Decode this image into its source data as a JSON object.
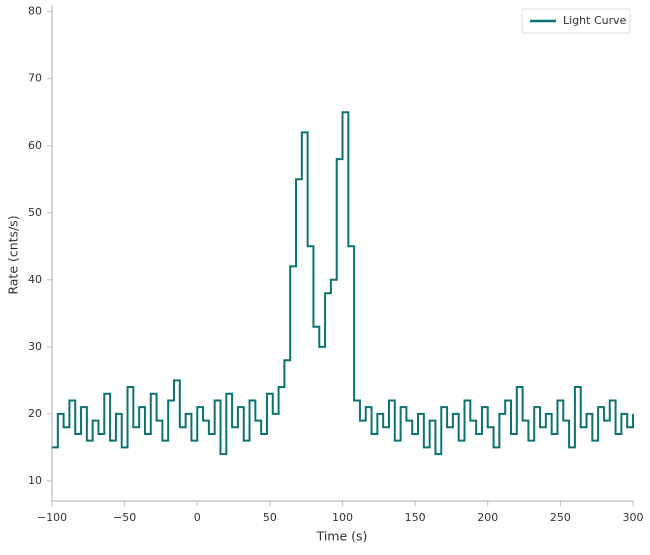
{
  "chart_data": {
    "type": "step",
    "x_label": "Time (s)",
    "y_label": "Rate (cnts/s)",
    "legend": "upper right",
    "grid": false,
    "xlim": [
      -100,
      300
    ],
    "ylim": [
      7,
      81
    ],
    "xticks": [
      {
        "value": -100,
        "label": "−100"
      },
      {
        "value": -50,
        "label": "−50"
      },
      0,
      50,
      100,
      150,
      200,
      250,
      300
    ],
    "yticks": [
      10,
      20,
      30,
      40,
      50,
      60,
      70,
      80
    ],
    "x": [
      -100,
      -96,
      -92,
      -88,
      -84,
      -80,
      -76,
      -72,
      -68,
      -64,
      -60,
      -56,
      -52,
      -48,
      -44,
      -40,
      -36,
      -32,
      -28,
      -24,
      -20,
      -16,
      -12,
      -8,
      -4,
      0,
      4,
      8,
      12,
      16,
      20,
      24,
      28,
      32,
      36,
      40,
      44,
      48,
      52,
      56,
      60,
      64,
      68,
      72,
      76,
      80,
      84,
      88,
      92,
      96,
      100,
      104,
      108,
      112,
      116,
      120,
      124,
      128,
      132,
      136,
      140,
      144,
      148,
      152,
      156,
      160,
      164,
      168,
      172,
      176,
      180,
      184,
      188,
      192,
      196,
      200,
      204,
      208,
      212,
      216,
      220,
      224,
      228,
      232,
      236,
      240,
      244,
      248,
      252,
      256,
      260,
      264,
      268,
      272,
      276,
      280,
      284,
      288,
      292,
      296,
      300
    ],
    "series": [
      {
        "name": "Light Curve",
        "color": "#0b7370",
        "values": [
          15,
          20,
          18,
          22,
          17,
          21,
          16,
          19,
          17,
          23,
          16,
          20,
          15,
          24,
          18,
          21,
          17,
          23,
          19,
          16,
          22,
          25,
          18,
          20,
          16,
          21,
          19,
          17,
          22,
          14,
          23,
          18,
          21,
          16,
          22,
          19,
          17,
          23,
          20,
          24,
          28,
          42,
          55,
          62,
          45,
          33,
          30,
          38,
          40,
          58,
          65,
          45,
          22,
          19,
          21,
          17,
          20,
          18,
          22,
          16,
          21,
          19,
          17,
          20,
          15,
          19,
          14,
          21,
          18,
          20,
          16,
          22,
          19,
          17,
          21,
          18,
          15,
          20,
          22,
          17,
          24,
          19,
          16,
          21,
          18,
          20,
          17,
          22,
          19,
          15,
          24,
          18,
          20,
          16,
          21,
          19,
          22,
          17,
          20,
          18,
          20
        ]
      }
    ]
  }
}
